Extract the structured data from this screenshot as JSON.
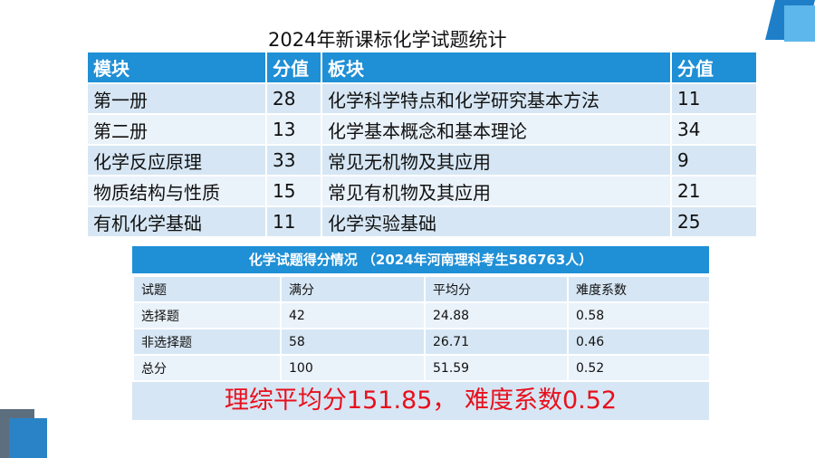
{
  "title": "2024年新课标化学试题统计",
  "main_table": {
    "headers": [
      "模块",
      "分值",
      "板块",
      "分值"
    ],
    "rows": [
      [
        "第一册",
        "28",
        "化学科学特点和化学研究基本方法",
        "11"
      ],
      [
        "第二册",
        "13",
        "化学基本概念和基本理论",
        "34"
      ],
      [
        "化学反应原理",
        "33",
        "常见无机物及其应用",
        "9"
      ],
      [
        "物质结构与性质",
        "15",
        "常见有机物及其应用",
        "21"
      ],
      [
        "有机化学基础",
        "11",
        "化学实验基础",
        "25"
      ]
    ]
  },
  "score_table": {
    "title": "化学试题得分情况 （2024年河南理科考生586763人）",
    "rows": [
      [
        "试题",
        "满分",
        "平均分",
        "难度系数"
      ],
      [
        "选择题",
        "42",
        "24.88",
        "0.58"
      ],
      [
        "非选择题",
        "58",
        "26.71",
        "0.46"
      ],
      [
        "总分",
        "100",
        "51.59",
        "0.52"
      ]
    ],
    "summary": "理综平均分151.85， 难度系数0.52"
  },
  "colors": {
    "header_blue": "#1f8fd6",
    "row_dark": "#d6e6f4",
    "row_light": "#eaf2fa",
    "summary_red": "#e8101c"
  }
}
